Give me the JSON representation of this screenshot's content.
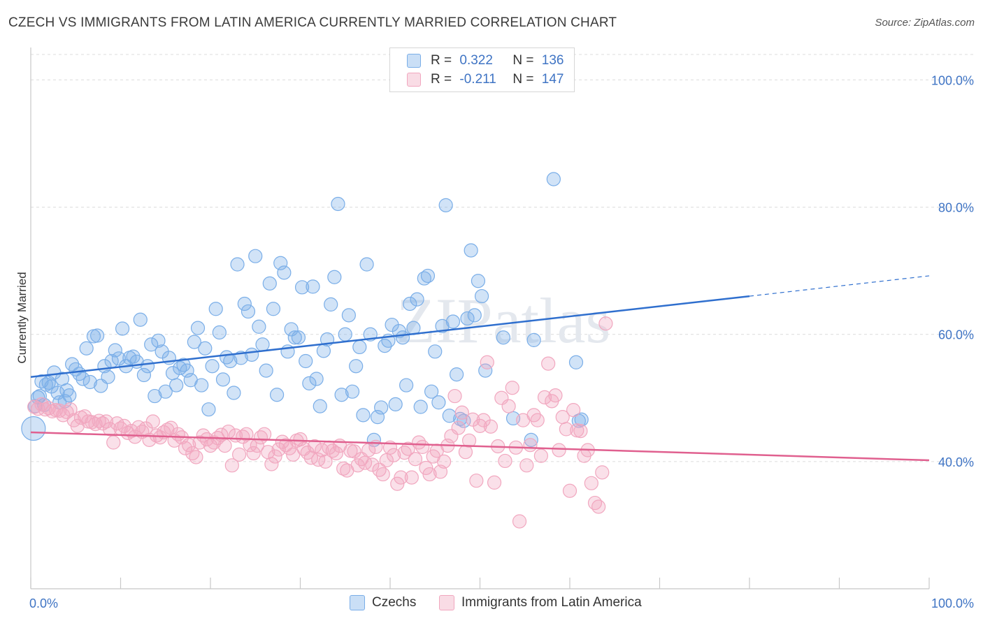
{
  "title": "CZECH VS IMMIGRANTS FROM LATIN AMERICA CURRENTLY MARRIED CORRELATION CHART",
  "source": "Source: ZipAtlas.com",
  "watermark": "ZIPatlas",
  "legend": {
    "r_label": "R =",
    "n_label": "N =",
    "rows": [
      {
        "r": "0.322",
        "n": "136",
        "color": "#7aaee8"
      },
      {
        "r": "-0.211",
        "n": "147",
        "color": "#f1a7bf"
      }
    ]
  },
  "chart_data": {
    "type": "scatter",
    "ylabel": "Currently Married",
    "xlim": [
      0,
      100
    ],
    "ylim": [
      20,
      104
    ],
    "x_tick_labels": [
      "0.0%",
      "100.0%"
    ],
    "y_ticks": [
      40,
      60,
      80,
      100
    ],
    "y_tick_labels": [
      "40.0%",
      "60.0%",
      "80.0%",
      "100.0%"
    ],
    "grid": "horizontal dashed",
    "legend_position": "top-center",
    "series": [
      {
        "name": "Czechs",
        "color": "#7aaee8",
        "line_color": "#2f6fce",
        "trend": {
          "x0": 0,
          "y0": 53.3,
          "x1": 80,
          "y1": 66.0,
          "dash_x1": 100,
          "dash_y1": 69.2
        },
        "points": [
          [
            0.3,
            45.2
          ],
          [
            0.5,
            48.7
          ],
          [
            0.8,
            50.1
          ],
          [
            1.0,
            50.3
          ],
          [
            1.2,
            52.6
          ],
          [
            1.5,
            48.9
          ],
          [
            1.7,
            52.1
          ],
          [
            2.0,
            52.4
          ],
          [
            2.3,
            51.8
          ],
          [
            2.6,
            54.0
          ],
          [
            3.0,
            50.8
          ],
          [
            3.2,
            49.3
          ],
          [
            3.5,
            53.0
          ],
          [
            3.8,
            49.5
          ],
          [
            4.0,
            51.2
          ],
          [
            4.3,
            50.4
          ],
          [
            4.6,
            55.3
          ],
          [
            5.0,
            54.5
          ],
          [
            5.4,
            53.8
          ],
          [
            5.8,
            53.0
          ],
          [
            6.2,
            57.8
          ],
          [
            6.6,
            52.5
          ],
          [
            7.0,
            59.7
          ],
          [
            7.4,
            59.8
          ],
          [
            7.8,
            51.9
          ],
          [
            8.2,
            55.0
          ],
          [
            8.6,
            53.3
          ],
          [
            9.0,
            55.8
          ],
          [
            9.4,
            57.5
          ],
          [
            9.8,
            56.2
          ],
          [
            10.2,
            60.9
          ],
          [
            10.6,
            55.0
          ],
          [
            11.0,
            56.3
          ],
          [
            11.4,
            56.5
          ],
          [
            11.8,
            55.7
          ],
          [
            12.2,
            62.3
          ],
          [
            12.6,
            53.6
          ],
          [
            13.0,
            55.0
          ],
          [
            13.4,
            58.4
          ],
          [
            13.8,
            50.3
          ],
          [
            14.2,
            59.0
          ],
          [
            14.6,
            57.3
          ],
          [
            15.0,
            51.0
          ],
          [
            15.4,
            56.3
          ],
          [
            15.8,
            53.9
          ],
          [
            16.2,
            52.0
          ],
          [
            16.6,
            54.7
          ],
          [
            17.0,
            55.2
          ],
          [
            17.4,
            54.3
          ],
          [
            17.8,
            52.8
          ],
          [
            18.2,
            58.8
          ],
          [
            18.6,
            61.0
          ],
          [
            19.0,
            52.0
          ],
          [
            19.4,
            57.8
          ],
          [
            19.8,
            48.2
          ],
          [
            20.2,
            55.0
          ],
          [
            20.6,
            64.0
          ],
          [
            21.0,
            60.3
          ],
          [
            21.4,
            52.9
          ],
          [
            21.8,
            56.4
          ],
          [
            22.2,
            55.8
          ],
          [
            22.6,
            50.8
          ],
          [
            23.0,
            71.0
          ],
          [
            23.4,
            56.3
          ],
          [
            23.8,
            64.8
          ],
          [
            24.2,
            63.6
          ],
          [
            24.6,
            56.8
          ],
          [
            25.0,
            72.3
          ],
          [
            25.4,
            61.2
          ],
          [
            25.8,
            58.4
          ],
          [
            26.2,
            54.3
          ],
          [
            26.6,
            68.0
          ],
          [
            27.0,
            64.0
          ],
          [
            27.4,
            50.5
          ],
          [
            27.8,
            71.2
          ],
          [
            28.2,
            69.7
          ],
          [
            28.6,
            57.3
          ],
          [
            29.0,
            60.8
          ],
          [
            29.4,
            59.5
          ],
          [
            29.8,
            59.5
          ],
          [
            30.2,
            67.4
          ],
          [
            30.6,
            55.8
          ],
          [
            31.0,
            52.3
          ],
          [
            31.4,
            67.5
          ],
          [
            31.8,
            53.0
          ],
          [
            32.2,
            48.7
          ],
          [
            32.6,
            57.4
          ],
          [
            33.0,
            59.2
          ],
          [
            33.4,
            64.7
          ],
          [
            33.8,
            69.0
          ],
          [
            34.2,
            80.5
          ],
          [
            34.6,
            50.5
          ],
          [
            35.0,
            60.0
          ],
          [
            35.4,
            63.0
          ],
          [
            35.8,
            51.0
          ],
          [
            36.2,
            55.0
          ],
          [
            36.6,
            58.0
          ],
          [
            37.0,
            47.3
          ],
          [
            37.4,
            71.0
          ],
          [
            37.8,
            60.0
          ],
          [
            38.2,
            43.4
          ],
          [
            38.6,
            47.0
          ],
          [
            39.0,
            48.5
          ],
          [
            39.4,
            58.2
          ],
          [
            39.8,
            59.0
          ],
          [
            40.2,
            61.5
          ],
          [
            40.6,
            49.0
          ],
          [
            41.0,
            60.5
          ],
          [
            41.4,
            59.5
          ],
          [
            41.8,
            52.0
          ],
          [
            42.2,
            64.8
          ],
          [
            42.6,
            61.0
          ],
          [
            43.0,
            65.5
          ],
          [
            43.4,
            48.6
          ],
          [
            43.8,
            68.8
          ],
          [
            44.2,
            69.2
          ],
          [
            44.6,
            51.0
          ],
          [
            45.0,
            57.3
          ],
          [
            45.4,
            49.3
          ],
          [
            45.8,
            61.3
          ],
          [
            46.2,
            80.3
          ],
          [
            46.6,
            47.2
          ],
          [
            47.0,
            62.0
          ],
          [
            47.4,
            53.7
          ],
          [
            47.8,
            46.7
          ],
          [
            48.2,
            46.4
          ],
          [
            48.6,
            62.5
          ],
          [
            49.0,
            73.2
          ],
          [
            49.4,
            63.0
          ],
          [
            49.8,
            68.4
          ],
          [
            50.2,
            66.0
          ],
          [
            50.6,
            54.3
          ],
          [
            52.6,
            59.5
          ],
          [
            53.7,
            46.8
          ],
          [
            55.7,
            43.4
          ],
          [
            56.0,
            59.1
          ],
          [
            58.2,
            84.4
          ],
          [
            60.7,
            55.6
          ],
          [
            61.0,
            46.4
          ],
          [
            61.3,
            46.6
          ]
        ]
      },
      {
        "name": "Immigrants from Latin America",
        "color": "#f1a7bf",
        "line_color": "#e0608f",
        "trend": {
          "x0": 0,
          "y0": 44.6,
          "x1": 100,
          "y1": 40.2
        },
        "points": [
          [
            0.4,
            48.6
          ],
          [
            0.8,
            48.3
          ],
          [
            1.2,
            49.0
          ],
          [
            1.6,
            48.2
          ],
          [
            2.0,
            48.4
          ],
          [
            2.4,
            47.9
          ],
          [
            2.8,
            48.1
          ],
          [
            3.2,
            48.0
          ],
          [
            3.6,
            47.3
          ],
          [
            4.0,
            47.8
          ],
          [
            4.4,
            48.2
          ],
          [
            4.8,
            46.5
          ],
          [
            5.2,
            45.6
          ],
          [
            5.6,
            46.9
          ],
          [
            6.0,
            47.1
          ],
          [
            6.4,
            46.3
          ],
          [
            6.8,
            46.2
          ],
          [
            7.2,
            45.9
          ],
          [
            7.6,
            46.4
          ],
          [
            8.0,
            46.0
          ],
          [
            8.4,
            46.3
          ],
          [
            8.8,
            45.1
          ],
          [
            9.2,
            43.0
          ],
          [
            9.6,
            46.0
          ],
          [
            10.0,
            45.2
          ],
          [
            10.4,
            45.6
          ],
          [
            10.8,
            44.5
          ],
          [
            11.2,
            44.8
          ],
          [
            11.6,
            43.9
          ],
          [
            12.0,
            45.4
          ],
          [
            12.4,
            44.7
          ],
          [
            12.8,
            45.2
          ],
          [
            13.2,
            43.4
          ],
          [
            13.6,
            46.3
          ],
          [
            14.0,
            44.1
          ],
          [
            14.4,
            43.8
          ],
          [
            14.8,
            44.6
          ],
          [
            15.2,
            45.0
          ],
          [
            15.6,
            45.3
          ],
          [
            16.0,
            43.3
          ],
          [
            16.4,
            44.3
          ],
          [
            16.8,
            43.8
          ],
          [
            17.2,
            42.1
          ],
          [
            17.6,
            42.6
          ],
          [
            18.0,
            41.3
          ],
          [
            18.4,
            40.7
          ],
          [
            18.8,
            43.0
          ],
          [
            19.2,
            44.1
          ],
          [
            19.6,
            43.5
          ],
          [
            20.0,
            42.5
          ],
          [
            20.4,
            43.0
          ],
          [
            20.8,
            43.7
          ],
          [
            21.2,
            44.2
          ],
          [
            21.6,
            42.5
          ],
          [
            22.0,
            44.7
          ],
          [
            22.4,
            39.4
          ],
          [
            22.8,
            44.1
          ],
          [
            23.2,
            41.1
          ],
          [
            23.6,
            43.9
          ],
          [
            24.0,
            44.3
          ],
          [
            24.4,
            42.6
          ],
          [
            24.8,
            41.3
          ],
          [
            25.2,
            42.5
          ],
          [
            25.6,
            43.8
          ],
          [
            26.0,
            44.3
          ],
          [
            26.4,
            41.5
          ],
          [
            26.8,
            39.6
          ],
          [
            27.2,
            40.8
          ],
          [
            27.6,
            41.9
          ],
          [
            28.0,
            43.1
          ],
          [
            28.4,
            42.6
          ],
          [
            28.8,
            42.1
          ],
          [
            29.2,
            41.1
          ],
          [
            29.6,
            43.3
          ],
          [
            30.0,
            43.5
          ],
          [
            30.4,
            42.0
          ],
          [
            30.8,
            41.4
          ],
          [
            31.2,
            40.6
          ],
          [
            31.6,
            42.4
          ],
          [
            32.0,
            40.3
          ],
          [
            32.4,
            41.8
          ],
          [
            32.8,
            40.0
          ],
          [
            33.2,
            42.2
          ],
          [
            33.6,
            41.7
          ],
          [
            34.0,
            41.3
          ],
          [
            34.4,
            42.5
          ],
          [
            34.8,
            38.9
          ],
          [
            35.2,
            38.6
          ],
          [
            35.6,
            41.7
          ],
          [
            36.0,
            41.6
          ],
          [
            36.4,
            39.4
          ],
          [
            36.8,
            40.4
          ],
          [
            37.2,
            39.8
          ],
          [
            37.6,
            41.8
          ],
          [
            38.0,
            39.5
          ],
          [
            38.4,
            42.3
          ],
          [
            38.8,
            38.7
          ],
          [
            39.2,
            38.0
          ],
          [
            39.6,
            40.2
          ],
          [
            40.0,
            42.2
          ],
          [
            40.4,
            41.0
          ],
          [
            40.8,
            36.5
          ],
          [
            41.2,
            37.5
          ],
          [
            41.6,
            41.4
          ],
          [
            42.0,
            42.0
          ],
          [
            42.4,
            37.5
          ],
          [
            42.8,
            40.4
          ],
          [
            43.2,
            43.0
          ],
          [
            43.6,
            42.3
          ],
          [
            44.0,
            39.0
          ],
          [
            44.4,
            38.0
          ],
          [
            44.8,
            40.8
          ],
          [
            45.2,
            41.7
          ],
          [
            45.6,
            38.4
          ],
          [
            46.0,
            40.0
          ],
          [
            46.4,
            42.5
          ],
          [
            46.8,
            44.0
          ],
          [
            47.2,
            50.3
          ],
          [
            47.6,
            45.3
          ],
          [
            48.0,
            47.7
          ],
          [
            48.4,
            41.5
          ],
          [
            48.8,
            43.3
          ],
          [
            49.2,
            46.6
          ],
          [
            49.6,
            37.0
          ],
          [
            50.0,
            45.6
          ],
          [
            50.4,
            46.5
          ],
          [
            50.8,
            55.6
          ],
          [
            51.2,
            45.5
          ],
          [
            51.6,
            36.7
          ],
          [
            52.0,
            42.4
          ],
          [
            52.4,
            50.0
          ],
          [
            52.8,
            40.1
          ],
          [
            53.2,
            48.7
          ],
          [
            53.6,
            51.6
          ],
          [
            54.0,
            42.2
          ],
          [
            54.4,
            30.6
          ],
          [
            54.8,
            46.5
          ],
          [
            55.2,
            39.4
          ],
          [
            55.6,
            42.6
          ],
          [
            56.0,
            47.3
          ],
          [
            56.4,
            46.5
          ],
          [
            56.8,
            40.9
          ],
          [
            57.2,
            50.1
          ],
          [
            57.6,
            55.4
          ],
          [
            58.0,
            49.5
          ],
          [
            58.4,
            50.4
          ],
          [
            58.8,
            41.8
          ],
          [
            59.2,
            47.0
          ],
          [
            59.6,
            45.1
          ],
          [
            60.0,
            35.4
          ],
          [
            60.4,
            48.1
          ],
          [
            60.8,
            44.9
          ],
          [
            61.2,
            44.8
          ],
          [
            61.6,
            40.9
          ],
          [
            62.0,
            41.8
          ],
          [
            62.4,
            36.6
          ],
          [
            62.8,
            33.5
          ],
          [
            63.2,
            32.9
          ],
          [
            63.6,
            38.3
          ],
          [
            64.0,
            61.7
          ]
        ]
      }
    ]
  },
  "bottom_legend": [
    {
      "label": "Czechs",
      "color": "#7aaee8"
    },
    {
      "label": "Immigrants from Latin America",
      "color": "#f1a7bf"
    }
  ]
}
